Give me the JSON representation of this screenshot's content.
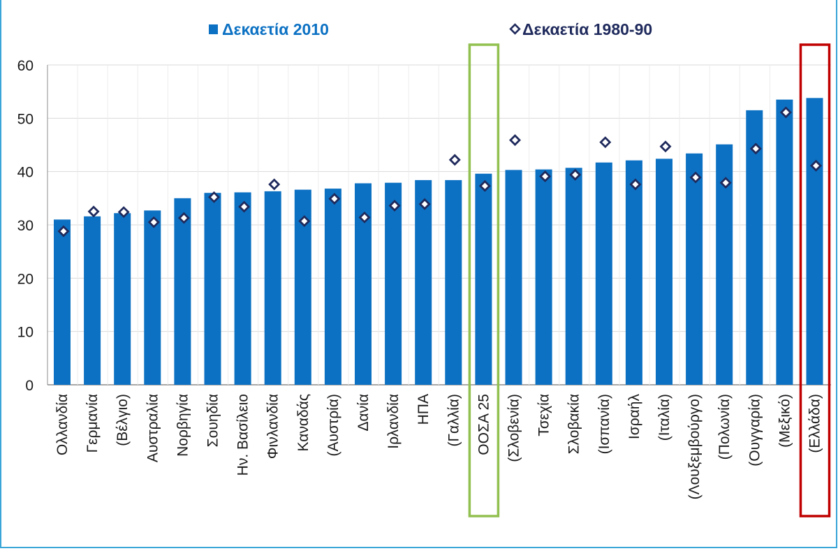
{
  "colors": {
    "bar": "#0c71c3",
    "marker_stroke": "#1f2a5c",
    "legend_1980_text": "#1f2a5c",
    "grid": "#d9d9d9",
    "axis": "#8c8c8c",
    "highlight_oecd": "#92c050",
    "highlight_greece": "#c00000",
    "frame": "#3aa6d8"
  },
  "chart_data": {
    "type": "bar",
    "categories": [
      "Ολλανδία",
      "Γερμανία",
      "(Βέλγιο)",
      "Αυστραλία",
      "Νορβηγία",
      "Σουηδία",
      "Ην. Βασίλειο",
      "Φινλανδία",
      "Καναδάς",
      "(Αυστρία)",
      "Δανία",
      "Ιρλανδία",
      "ΗΠΑ",
      "(Γαλλία)",
      "ΟΟΣΑ 25",
      "(Σλοβενία)",
      "Τσεχία",
      "Σλοβακία",
      "(Ισπανία)",
      "Ισραήλ",
      "(Ιταλία)",
      "(Λουξεμβούργο)",
      "(Πολωνία)",
      "(Ουγγαρία)",
      "(Μεξικό)",
      "(Ελλάδα)"
    ],
    "series": [
      {
        "name": "Δεκαετία 2010",
        "kind": "bar",
        "values": [
          31.0,
          31.6,
          32.2,
          32.7,
          35.0,
          36.0,
          36.1,
          36.3,
          36.6,
          36.8,
          37.8,
          37.9,
          38.4,
          38.4,
          39.6,
          40.3,
          40.4,
          40.7,
          41.7,
          42.1,
          42.4,
          43.4,
          45.1,
          51.5,
          53.5,
          53.8
        ]
      },
      {
        "name": "Δεκαετία 1980-90",
        "kind": "marker",
        "values": [
          28.8,
          32.5,
          32.4,
          30.5,
          31.3,
          35.2,
          33.4,
          37.6,
          30.7,
          34.9,
          31.4,
          33.6,
          33.9,
          42.2,
          37.3,
          45.9,
          39.1,
          39.4,
          45.5,
          37.6,
          44.7,
          38.9,
          37.9,
          44.3,
          51.1,
          41.1
        ]
      }
    ],
    "yticks": [
      "0",
      "10",
      "20",
      "30",
      "40",
      "50",
      "60"
    ],
    "ylim": [
      0,
      60
    ],
    "grid": true,
    "legend_position": "top-center",
    "highlights": [
      {
        "category": "ΟΟΣΑ 25",
        "color": "green"
      },
      {
        "category": "(Ελλάδα)",
        "color": "red"
      }
    ]
  }
}
